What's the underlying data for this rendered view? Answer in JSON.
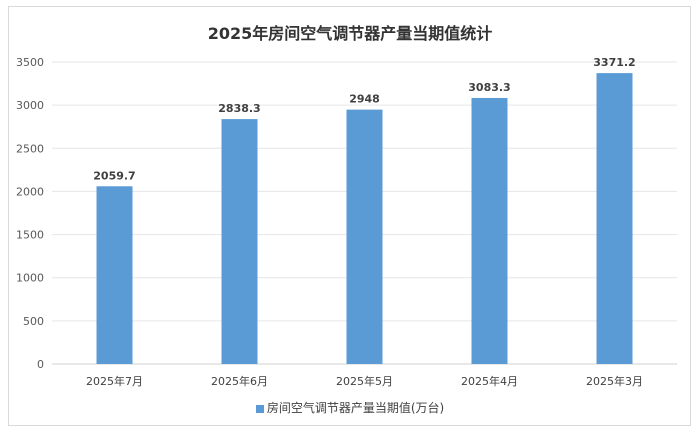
{
  "chart_data": {
    "type": "bar",
    "title": "2025年房间空气调节器产量当期值统计",
    "categories": [
      "2025年7月",
      "2025年6月",
      "2025年5月",
      "2025年4月",
      "2025年3月"
    ],
    "series": [
      {
        "name": "房间空气调节器产量当期值(万台)",
        "values": [
          2059.7,
          2838.3,
          2948,
          3083.3,
          3371.2
        ],
        "color": "#5b9bd5"
      }
    ],
    "data_labels": [
      "2059.7",
      "2838.3",
      "2948",
      "3083.3",
      "3371.2"
    ],
    "yticks": [
      "0",
      "500",
      "1000",
      "1500",
      "2000",
      "2500",
      "3000",
      "3500"
    ],
    "ylim": [
      0,
      3500
    ],
    "grid": true,
    "legend_position": "bottom"
  }
}
